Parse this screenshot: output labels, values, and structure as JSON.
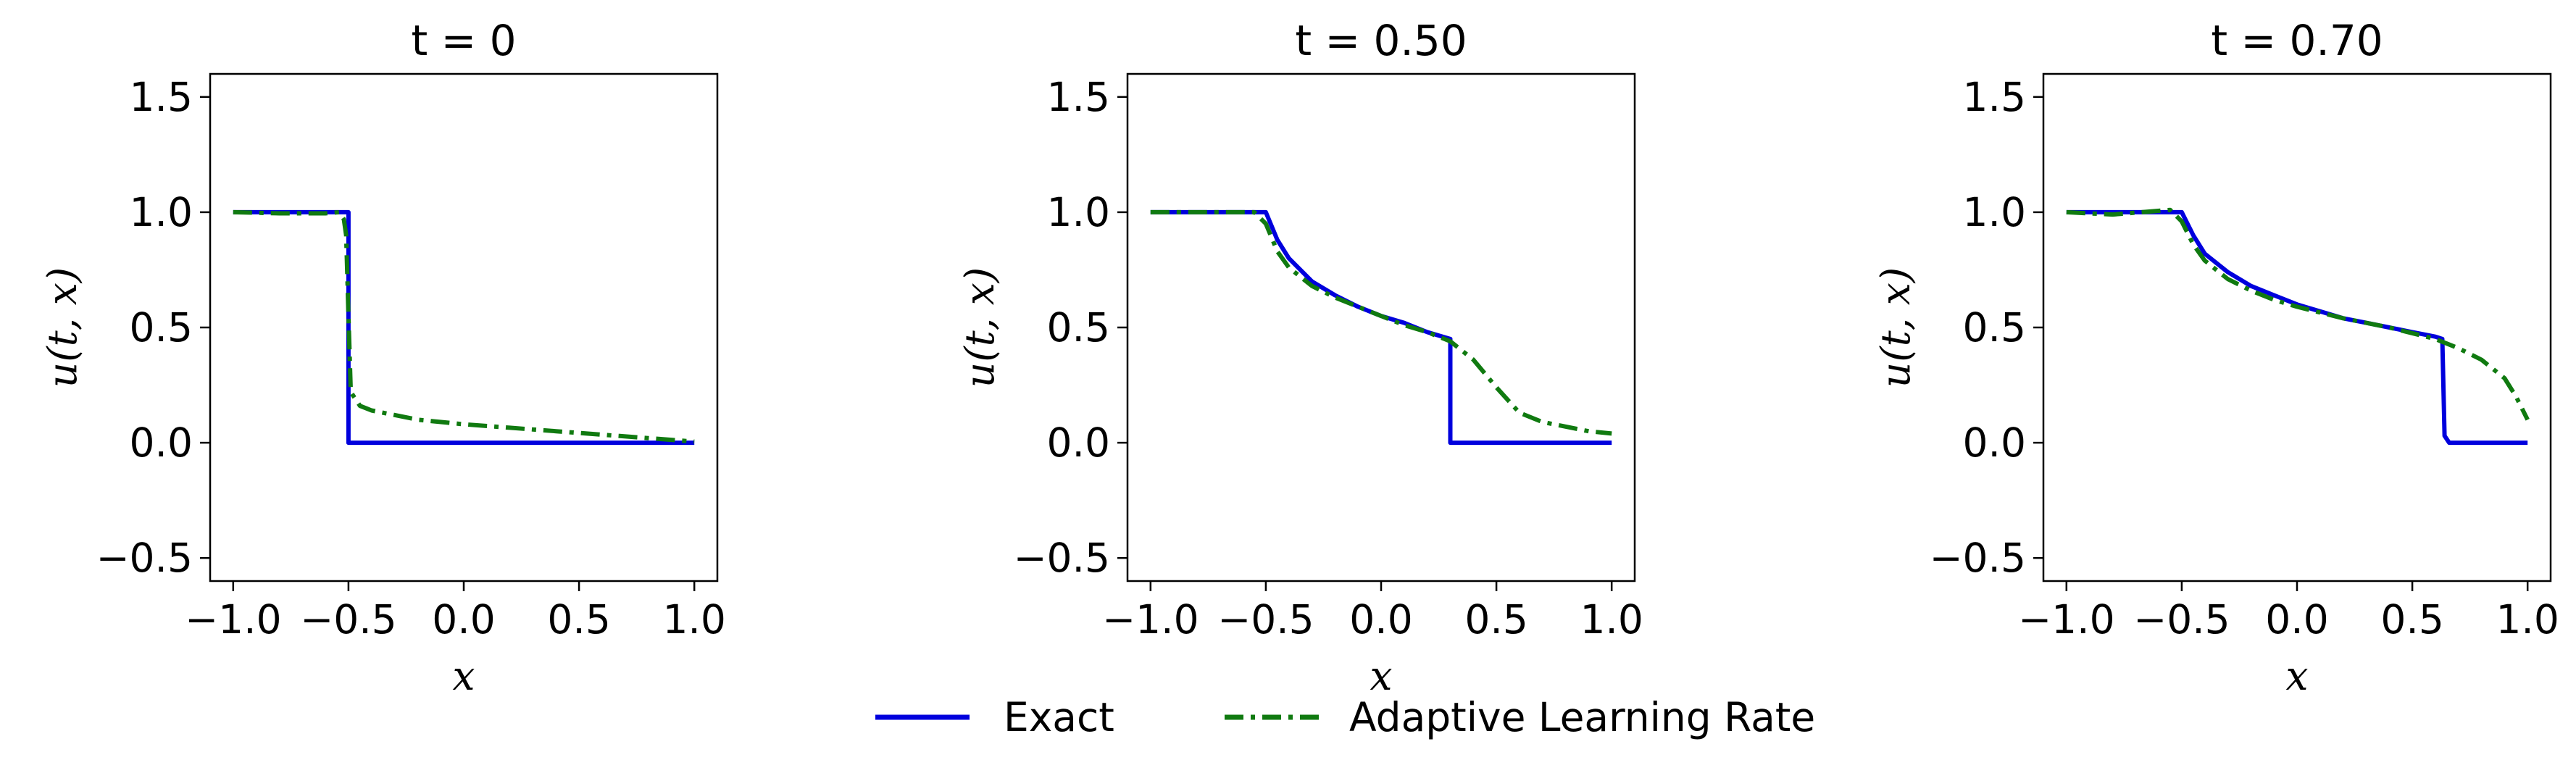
{
  "chart_data": [
    {
      "type": "line",
      "title": "t = 0",
      "xlabel": "x",
      "ylabel": "u(t, x)",
      "xlim": [
        -1.1,
        1.1
      ],
      "ylim": [
        -0.6,
        1.6
      ],
      "xticks": [
        -1.0,
        -0.5,
        0.0,
        0.5,
        1.0
      ],
      "xtick_labels": [
        "−1.0",
        "−0.5",
        "0.0",
        "0.5",
        "1.0"
      ],
      "yticks": [
        -0.5,
        0.0,
        0.5,
        1.0,
        1.5
      ],
      "ytick_labels": [
        "−0.5",
        "0.0",
        "0.5",
        "1.0",
        "1.5"
      ],
      "series": [
        {
          "name": "Exact",
          "color": "#0000dd",
          "dash": "solid",
          "x": [
            -1.0,
            -0.5,
            -0.5,
            1.0
          ],
          "y": [
            1.0,
            1.0,
            0.0,
            0.0
          ]
        },
        {
          "name": "Adaptive Learning Rate",
          "color": "#107a10",
          "dash": "dashdot",
          "x": [
            -1.0,
            -0.8,
            -0.6,
            -0.54,
            -0.52,
            -0.51,
            -0.5,
            -0.49,
            -0.45,
            -0.4,
            -0.2,
            0.0,
            0.2,
            0.4,
            0.6,
            0.8,
            1.0
          ],
          "y": [
            1.0,
            0.995,
            0.995,
            1.0,
            0.97,
            0.9,
            0.55,
            0.22,
            0.16,
            0.14,
            0.1,
            0.08,
            0.065,
            0.05,
            0.035,
            0.02,
            0.005
          ]
        }
      ]
    },
    {
      "type": "line",
      "title": "t = 0.50",
      "xlabel": "x",
      "ylabel": "u(t, x)",
      "xlim": [
        -1.1,
        1.1
      ],
      "ylim": [
        -0.6,
        1.6
      ],
      "xticks": [
        -1.0,
        -0.5,
        0.0,
        0.5,
        1.0
      ],
      "xtick_labels": [
        "−1.0",
        "−0.5",
        "0.0",
        "0.5",
        "1.0"
      ],
      "yticks": [
        -0.5,
        0.0,
        0.5,
        1.0,
        1.5
      ],
      "ytick_labels": [
        "−0.5",
        "0.0",
        "0.5",
        "1.0",
        "1.5"
      ],
      "series": [
        {
          "name": "Exact",
          "color": "#0000dd",
          "dash": "solid",
          "x": [
            -1.0,
            -0.5,
            -0.45,
            -0.4,
            -0.3,
            -0.2,
            -0.1,
            0.0,
            0.1,
            0.2,
            0.3,
            0.3,
            1.0
          ],
          "y": [
            1.0,
            1.0,
            0.88,
            0.8,
            0.7,
            0.64,
            0.59,
            0.55,
            0.52,
            0.48,
            0.45,
            0.0,
            0.0
          ]
        },
        {
          "name": "Adaptive Learning Rate",
          "color": "#107a10",
          "dash": "dashdot",
          "x": [
            -1.0,
            -0.8,
            -0.55,
            -0.5,
            -0.45,
            -0.4,
            -0.3,
            -0.2,
            -0.1,
            0.0,
            0.1,
            0.2,
            0.3,
            0.4,
            0.5,
            0.6,
            0.7,
            0.8,
            0.9,
            1.0
          ],
          "y": [
            1.0,
            1.0,
            1.0,
            0.95,
            0.83,
            0.76,
            0.68,
            0.63,
            0.59,
            0.55,
            0.51,
            0.48,
            0.44,
            0.36,
            0.24,
            0.13,
            0.09,
            0.07,
            0.05,
            0.04
          ]
        }
      ]
    },
    {
      "type": "line",
      "title": "t = 0.70",
      "xlabel": "x",
      "ylabel": "u(t, x)",
      "xlim": [
        -1.1,
        1.1
      ],
      "ylim": [
        -0.6,
        1.6
      ],
      "xticks": [
        -1.0,
        -0.5,
        0.0,
        0.5,
        1.0
      ],
      "xtick_labels": [
        "−1.0",
        "−0.5",
        "0.0",
        "0.5",
        "1.0"
      ],
      "yticks": [
        -0.5,
        0.0,
        0.5,
        1.0,
        1.5
      ],
      "ytick_labels": [
        "−0.5",
        "0.0",
        "0.5",
        "1.0",
        "1.5"
      ],
      "series": [
        {
          "name": "Exact",
          "color": "#0000dd",
          "dash": "solid",
          "x": [
            -1.0,
            -0.5,
            -0.45,
            -0.4,
            -0.3,
            -0.2,
            -0.1,
            0.0,
            0.1,
            0.2,
            0.3,
            0.4,
            0.5,
            0.6,
            0.63,
            0.64,
            0.66,
            1.0
          ],
          "y": [
            1.0,
            1.0,
            0.9,
            0.82,
            0.74,
            0.68,
            0.64,
            0.6,
            0.57,
            0.54,
            0.52,
            0.5,
            0.48,
            0.46,
            0.45,
            0.03,
            0.0,
            0.0
          ]
        },
        {
          "name": "Adaptive Learning Rate",
          "color": "#107a10",
          "dash": "dashdot",
          "x": [
            -1.0,
            -0.8,
            -0.55,
            -0.5,
            -0.45,
            -0.4,
            -0.3,
            -0.2,
            -0.1,
            0.0,
            0.2,
            0.4,
            0.6,
            0.7,
            0.8,
            0.9,
            0.95,
            1.0
          ],
          "y": [
            1.0,
            0.99,
            1.01,
            0.96,
            0.86,
            0.79,
            0.71,
            0.66,
            0.62,
            0.59,
            0.54,
            0.5,
            0.45,
            0.41,
            0.36,
            0.28,
            0.2,
            0.1
          ]
        }
      ]
    }
  ],
  "legend": {
    "placement": "bottom-center",
    "items": [
      {
        "label": "Exact",
        "color": "#0000dd",
        "dash": "solid"
      },
      {
        "label": "Adaptive Learning Rate",
        "color": "#107a10",
        "dash": "dashdot"
      }
    ]
  }
}
